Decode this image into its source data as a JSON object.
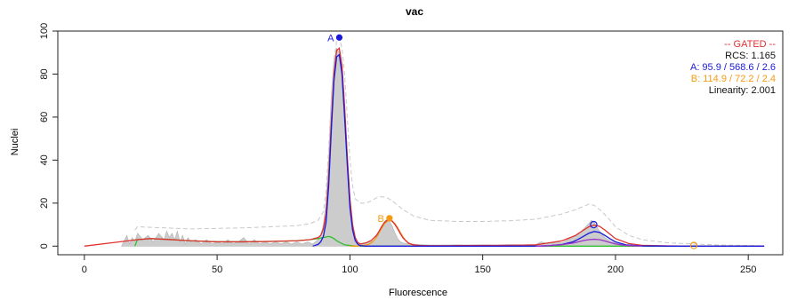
{
  "chart_data": {
    "type": "area",
    "title": "vac",
    "xlabel": "Fluorescence",
    "ylabel": "Nuclei",
    "xlim": [
      0,
      256
    ],
    "ylim": [
      0,
      100
    ],
    "x_ticks": [
      0,
      50,
      100,
      150,
      200,
      250
    ],
    "y_ticks": [
      0,
      20,
      40,
      60,
      80,
      100
    ],
    "grid": false,
    "legend": {
      "placement": "top-right",
      "title": "-- GATED --",
      "rcs": "RCS:  1.165",
      "peak_a": "A:  95.9 / 568.6 / 2.6",
      "peak_b": "B:  114.9 / 72.2 / 2.4",
      "linearity": "Linearity:  2.001"
    },
    "colors": {
      "histogram": "#cccccc",
      "histogram_edge": "#b3b3b3",
      "total_fit": "#e03030",
      "peak_a": "#1a1adb",
      "peak_b": "#f59a12",
      "debris": "#2fbf2f",
      "gate": "#c8c8c8",
      "secondary": "#9b30c9",
      "legend_title": "#e03030",
      "text": "#111111"
    },
    "peaks": [
      {
        "label": "A",
        "x": 96,
        "y": 97,
        "color_key": "peak_a"
      },
      {
        "label": "B",
        "x": 114.9,
        "y": 13,
        "color_key": "peak_b"
      }
    ],
    "markers": [
      {
        "x": 191.8,
        "y": 10,
        "color_key": "peak_a"
      },
      {
        "x": 229.5,
        "y": 0.3,
        "color_key": "peak_b"
      }
    ],
    "histogram": {
      "x": [
        14,
        16,
        17,
        18,
        19,
        20,
        22,
        24,
        26,
        28,
        30,
        31,
        32,
        33,
        34,
        35,
        36,
        37,
        38,
        39,
        40,
        42,
        44,
        46,
        48,
        50,
        52,
        54,
        56,
        58,
        60,
        62,
        64,
        66,
        68,
        70,
        72,
        74,
        76,
        78,
        80,
        82,
        84,
        86,
        88,
        89,
        90,
        91,
        92,
        93,
        94,
        95,
        96,
        97,
        98,
        99,
        100,
        101,
        102,
        103,
        104,
        106,
        108,
        110,
        111,
        112,
        113,
        114,
        115,
        116,
        117,
        118,
        119,
        120,
        122,
        124,
        126,
        128,
        130,
        135,
        140,
        145,
        150,
        155,
        160,
        165,
        170,
        172,
        175,
        178,
        180,
        182,
        184,
        186,
        188,
        190,
        191,
        192,
        193,
        194,
        195,
        196,
        198,
        200,
        202,
        204,
        206,
        208,
        210,
        215,
        220,
        225,
        230,
        235,
        240,
        245,
        250,
        255
      ],
      "y": [
        0,
        5,
        1,
        4,
        2,
        6,
        3,
        5,
        2,
        6,
        3,
        7,
        4,
        6,
        3,
        7,
        2,
        5,
        1,
        4,
        2,
        3,
        1,
        3,
        1,
        2,
        1,
        3,
        1,
        2,
        4,
        1,
        3,
        1,
        2,
        1,
        2,
        1,
        2,
        1,
        2,
        1,
        2,
        1,
        3,
        5,
        10,
        20,
        42,
        70,
        86,
        92,
        90,
        82,
        60,
        36,
        16,
        7,
        3,
        1.5,
        1,
        1.5,
        2,
        3.5,
        6,
        9,
        11.5,
        12.5,
        11.5,
        9,
        6,
        3.5,
        2,
        1.5,
        1,
        1,
        0.8,
        0.6,
        0.5,
        0.5,
        0.6,
        0.5,
        0.6,
        0.5,
        0.7,
        0.6,
        0.8,
        2,
        1,
        2,
        1.5,
        3,
        4,
        5.5,
        8,
        10.5,
        12,
        11,
        9,
        7,
        5.5,
        4,
        2.5,
        1.5,
        1,
        0.6,
        0.4,
        0.3,
        0.2,
        0.2,
        0.1,
        0.1,
        0.1,
        0.1,
        0,
        0,
        0,
        0
      ]
    },
    "series": [
      {
        "name": "",
        "color_key": "gate",
        "dashed": true,
        "x": [
          19,
          20,
          40,
          60,
          80,
          85,
          88,
          90,
          91,
          92,
          93,
          94,
          95,
          96,
          97,
          98,
          99,
          100,
          101,
          102,
          104,
          106,
          108,
          110,
          112,
          114,
          116,
          118,
          120,
          124,
          130,
          140,
          150,
          160,
          170,
          180,
          185,
          188,
          190,
          192,
          195,
          198,
          200,
          205,
          210,
          220,
          230,
          240,
          250,
          255
        ],
        "y": [
          7.5,
          9,
          8,
          8.5,
          9.5,
          10.5,
          12,
          16,
          25,
          45,
          70,
          87,
          95,
          97,
          92,
          80,
          60,
          40,
          28,
          22,
          20,
          20,
          21,
          22.5,
          23,
          22.5,
          21,
          19,
          17,
          14,
          12,
          11.5,
          11.5,
          11.8,
          12.5,
          15,
          17,
          18.5,
          19.5,
          19,
          16,
          12,
          9,
          5,
          3,
          1.5,
          1,
          0.5,
          0.3,
          0.2
        ]
      },
      {
        "name": "",
        "color_key": "debris",
        "dashed": false,
        "x": [
          19,
          20,
          25,
          30,
          40,
          50,
          60,
          70,
          80,
          85,
          88,
          90,
          92,
          93,
          94,
          95,
          96,
          98,
          100,
          102,
          104,
          106,
          110,
          120,
          130,
          150,
          170,
          180,
          190,
          192,
          195,
          200,
          210,
          220,
          230,
          256
        ],
        "y": [
          0,
          3,
          3.5,
          3.2,
          2.5,
          2,
          2,
          2.2,
          2.5,
          3,
          3.5,
          4,
          4.5,
          4.2,
          3.5,
          2.5,
          1.8,
          0.6,
          0.3,
          0.1,
          0.05,
          0,
          0,
          0,
          0,
          0,
          0,
          0,
          0,
          0,
          0,
          0,
          0,
          0,
          0,
          0
        ]
      },
      {
        "name": "",
        "color_key": "peak_b",
        "dashed": false,
        "x": [
          100,
          103,
          105,
          107,
          108,
          109,
          110,
          111,
          112,
          113,
          114,
          115,
          116,
          117,
          118,
          119,
          120,
          121,
          122,
          123,
          125,
          128,
          130
        ],
        "y": [
          0,
          0.1,
          0.3,
          0.8,
          1.5,
          2.6,
          4.3,
          6.3,
          8.5,
          10.4,
          11.6,
          12,
          11.6,
          10.4,
          8.5,
          6.3,
          4.3,
          2.6,
          1.5,
          0.8,
          0.2,
          0,
          0
        ]
      },
      {
        "name": "",
        "color_key": "total_fit",
        "dashed": false,
        "x": [
          0,
          20,
          25,
          30,
          40,
          50,
          60,
          70,
          80,
          85,
          88,
          89,
          90,
          91,
          92,
          93,
          94,
          95,
          96,
          97,
          98,
          99,
          100,
          101,
          102,
          103,
          104,
          106,
          108,
          110,
          111,
          112,
          113,
          114,
          115,
          116,
          117,
          118,
          119,
          120,
          122,
          124,
          126,
          130,
          140,
          150,
          160,
          170,
          180,
          185,
          188,
          190,
          192,
          194,
          196,
          198,
          200,
          205,
          210,
          220,
          230,
          256
        ],
        "y": [
          0,
          3,
          3.5,
          3.2,
          2.5,
          2,
          2,
          2.2,
          2.5,
          3,
          4,
          5,
          8,
          15,
          32,
          58,
          80,
          91,
          92,
          84,
          65,
          42,
          22,
          10,
          4,
          1.6,
          1,
          1.5,
          2.6,
          5,
          7,
          9.2,
          11,
          12,
          12.2,
          11.5,
          10,
          8,
          5.8,
          3.8,
          1.4,
          0.6,
          0.3,
          0.2,
          0.25,
          0.3,
          0.4,
          0.6,
          2.5,
          5,
          7.5,
          9,
          9.8,
          9.2,
          7.5,
          5.5,
          3.5,
          1.2,
          0.4,
          0.1,
          0,
          0
        ]
      },
      {
        "name": "",
        "color_key": "peak_a",
        "dashed": false,
        "x": [
          86,
          88,
          89,
          90,
          91,
          92,
          93,
          94,
          95,
          96,
          97,
          98,
          99,
          100,
          101,
          102,
          103,
          104,
          106,
          108,
          110,
          140,
          160,
          170,
          175,
          180,
          184,
          186,
          188,
          190,
          192,
          194,
          196,
          198,
          200,
          204,
          210,
          220,
          230,
          256
        ],
        "y": [
          0,
          0.8,
          2,
          4.5,
          11,
          28,
          54,
          77,
          88,
          89,
          80,
          60,
          38,
          18,
          7.5,
          2.6,
          0.8,
          0.2,
          0,
          0,
          0,
          0,
          0,
          0,
          0.2,
          0.8,
          2,
          3.2,
          4.6,
          6,
          6.8,
          6.4,
          5,
          3.4,
          2,
          0.6,
          0.1,
          0,
          0,
          0
        ]
      },
      {
        "name": "",
        "color_key": "secondary",
        "dashed": false,
        "x": [
          170,
          175,
          180,
          184,
          186,
          188,
          190,
          192,
          194,
          196,
          198,
          200,
          204,
          210
        ],
        "y": [
          0,
          0.2,
          0.7,
          1.4,
          2,
          2.6,
          3,
          3.2,
          3,
          2.4,
          1.7,
          1,
          0.3,
          0
        ]
      }
    ]
  }
}
